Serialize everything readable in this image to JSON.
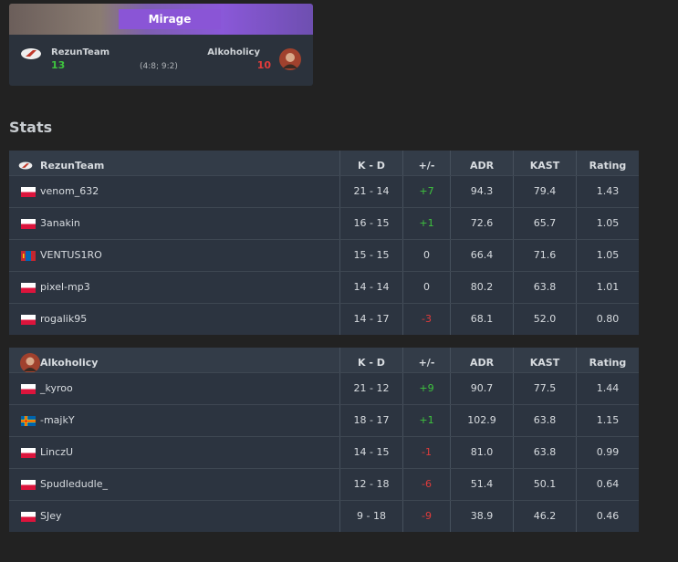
{
  "map": {
    "name": "Mirage",
    "team1": {
      "name": "RezunTeam",
      "score": 13
    },
    "halves": "(4:8; 9:2)",
    "team2": {
      "name": "Alkoholicy",
      "score": 10
    }
  },
  "stats": {
    "title": "Stats",
    "tables": [
      {
        "header": [
          "RezunTeam",
          "K - D",
          "+/-",
          "ADR",
          "KAST",
          "Rating"
        ],
        "rows": [
          [
            "venom_632",
            "21 - 14",
            "+7",
            "94.3",
            "79.4",
            "1.43"
          ],
          [
            "3anakin",
            "16 - 15",
            "+1",
            "72.6",
            "65.7",
            "1.05"
          ],
          [
            "VENTUS1RO",
            "15 - 15",
            "0",
            "66.4",
            "71.6",
            "1.05"
          ],
          [
            "pixel-mp3",
            "14 - 14",
            "0",
            "80.2",
            "63.8",
            "1.01"
          ],
          [
            "rogalik95",
            "14 - 17",
            "-3",
            "68.1",
            "52.0",
            "0.80"
          ]
        ]
      },
      {
        "header": [
          "Alkoholicy",
          "K - D",
          "+/-",
          "ADR",
          "KAST",
          "Rating"
        ],
        "rows": [
          [
            "_kyroo",
            "21 - 12",
            "+9",
            "90.7",
            "77.5",
            "1.44"
          ],
          [
            "-majkY",
            "18 - 17",
            "+1",
            "102.9",
            "63.8",
            "1.15"
          ],
          [
            "LinczU",
            "14 - 15",
            "-1",
            "81.0",
            "63.8",
            "0.99"
          ],
          [
            "Spudledudle_",
            "12 - 18",
            "-6",
            "51.4",
            "50.1",
            "0.64"
          ],
          [
            "SJey",
            "9 - 18",
            "-9",
            "38.9",
            "46.2",
            "0.46"
          ]
        ]
      }
    ]
  }
}
